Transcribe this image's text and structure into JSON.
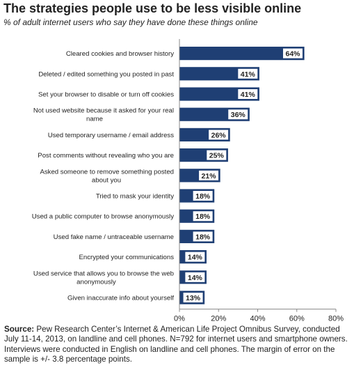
{
  "title": "The strategies people use to be less visible online",
  "subtitle": "% of adult internet users who say they have done these things online",
  "source": {
    "label": "Source:",
    "text": "Pew Research Center’s Internet & American Life Project Omnibus Survey, conducted July 11-14, 2013, on landline and cell phones. N=792 for internet users and smartphone owners. Interviews were conducted in English on landline and cell phones. The margin of error on the sample is +/- 3.8 percentage points."
  },
  "colors": {
    "bar": "#1f3f74",
    "bar_border": "#ffffff",
    "axis": "#888888",
    "text": "#222222"
  },
  "chart_data": {
    "type": "bar",
    "orientation": "horizontal",
    "title": "The strategies people use to be less visible online",
    "subtitle": "% of adult internet users who say they have done these things online",
    "categories": [
      [
        "Cleared cookies and browser history"
      ],
      [
        "Deleted / edited something you posted in past"
      ],
      [
        "Set your browser to disable or turn off cookies"
      ],
      [
        "Not used website because it asked for your real",
        "name"
      ],
      [
        "Used temporary username / email address"
      ],
      [
        "Post comments without revealing who you are"
      ],
      [
        "Asked someone to remove something posted",
        "about you"
      ],
      [
        "Tried to mask your identity"
      ],
      [
        "Used a public computer to browse anonymously"
      ],
      [
        "Used fake name / untraceable username"
      ],
      [
        "Encrypted your communications"
      ],
      [
        "Used service that allows you to browse the web",
        "anonymously"
      ],
      [
        "Given inaccurate info about yourself"
      ]
    ],
    "values": [
      64,
      41,
      41,
      36,
      26,
      25,
      21,
      18,
      18,
      18,
      14,
      14,
      13
    ],
    "value_labels": [
      "64%",
      "41%",
      "41%",
      "36%",
      "26%",
      "25%",
      "21%",
      "18%",
      "18%",
      "18%",
      "14%",
      "14%",
      "13%"
    ],
    "xlim": [
      0,
      80
    ],
    "xticks": [
      0,
      20,
      40,
      60,
      80
    ],
    "xtick_labels": [
      "0%",
      "20%",
      "40%",
      "60%",
      "80%"
    ],
    "xlabel": "",
    "ylabel": "",
    "grid": false,
    "legend": "none"
  }
}
